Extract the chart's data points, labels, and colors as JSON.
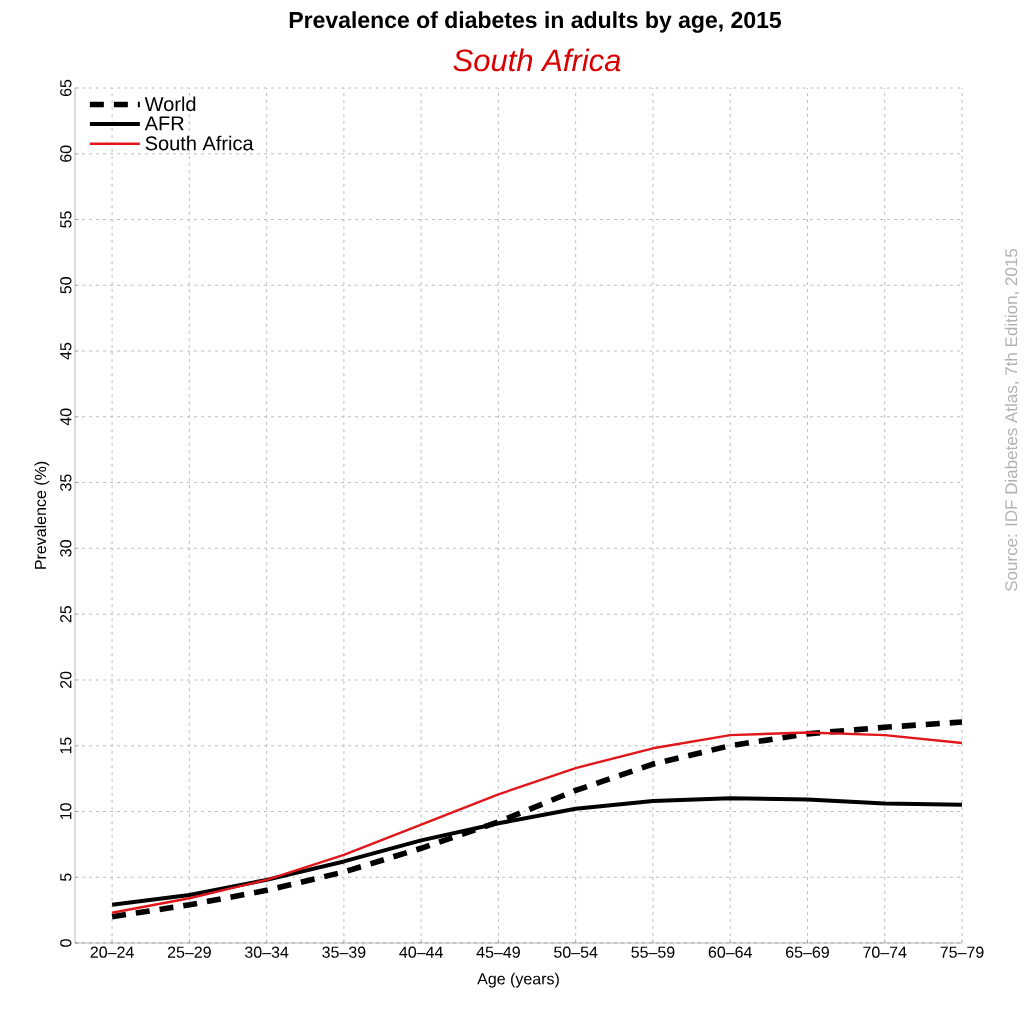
{
  "chart_data": {
    "type": "line",
    "title": "Prevalence of diabetes in adults by age, 2015",
    "subtitle": "South Africa",
    "xlabel": "Age (years)",
    "ylabel": "Prevalence (%)",
    "annotations": [
      "Source: IDF Diabetes Atlas, 7th Edition, 2015"
    ],
    "categories": [
      "20–24",
      "25–29",
      "30–34",
      "35–39",
      "40–44",
      "45–49",
      "50–54",
      "55–59",
      "60–64",
      "65–69",
      "70–74",
      "75–79"
    ],
    "series": [
      {
        "name": "World",
        "color": "#000000",
        "line_style": "dashed",
        "values": [
          2.0,
          2.9,
          4.0,
          5.4,
          7.2,
          9.2,
          11.6,
          13.6,
          15.0,
          15.9,
          16.4,
          16.8
        ]
      },
      {
        "name": "AFR",
        "color": "#000000",
        "line_style": "solid",
        "values": [
          2.9,
          3.65,
          4.8,
          6.2,
          7.8,
          9.1,
          10.2,
          10.8,
          11.0,
          10.9,
          10.6,
          10.5
        ]
      },
      {
        "name": "South Africa",
        "color": "#e0161b",
        "line_style": "solid",
        "values": [
          2.3,
          3.4,
          4.8,
          6.7,
          9.0,
          11.3,
          13.3,
          14.8,
          15.8,
          16.0,
          15.8,
          15.2
        ]
      }
    ],
    "ylim": [
      0,
      65
    ],
    "yticks": [
      0,
      5,
      10,
      15,
      20,
      25,
      30,
      35,
      40,
      45,
      50,
      55,
      60,
      65
    ],
    "grid": true,
    "legend": "top left"
  }
}
